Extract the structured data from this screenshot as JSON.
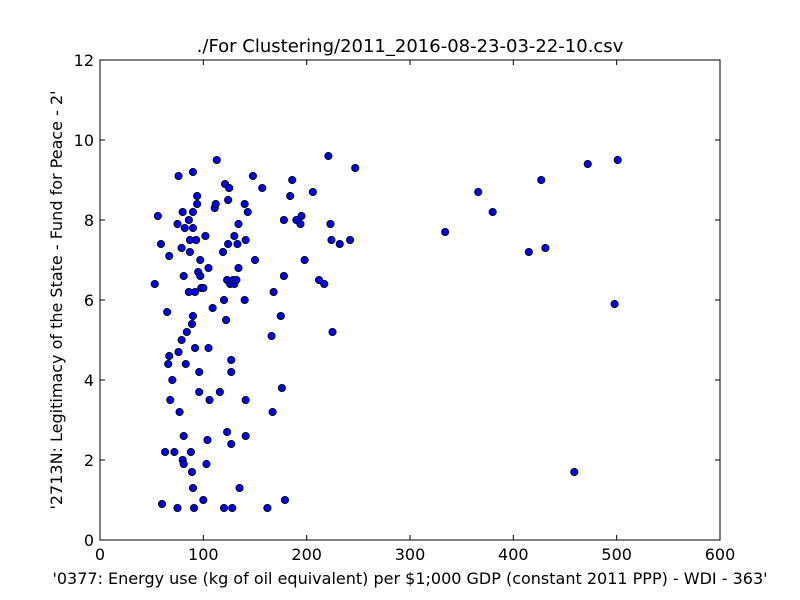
{
  "chart_data": {
    "type": "scatter",
    "title": "./For Clustering/2011_2016-08-23-03-22-10.csv",
    "xlabel": "'0377: Energy use (kg of oil equivalent) per $1;000 GDP  (constant 2011 PPP) - WDI - 363'",
    "ylabel": "'2713N: Legitimacy of the State - Fund for Peace - 2'",
    "xlim": [
      0,
      600
    ],
    "ylim": [
      0,
      12
    ],
    "xticks": [
      0,
      100,
      200,
      300,
      400,
      500,
      600
    ],
    "yticks": [
      0,
      2,
      4,
      6,
      8,
      10,
      12
    ],
    "grid": false,
    "marker_color": "#0000ff",
    "marker_edge": "#000000",
    "points": [
      [
        53,
        6.4
      ],
      [
        56,
        8.1
      ],
      [
        59,
        7.4
      ],
      [
        60,
        0.9
      ],
      [
        63,
        2.2
      ],
      [
        65,
        5.7
      ],
      [
        66,
        4.4
      ],
      [
        67,
        4.6
      ],
      [
        67,
        7.1
      ],
      [
        68,
        3.5
      ],
      [
        70,
        4.0
      ],
      [
        72,
        2.2
      ],
      [
        75,
        0.8
      ],
      [
        75,
        7.9
      ],
      [
        76,
        9.1
      ],
      [
        76,
        4.7
      ],
      [
        77,
        3.2
      ],
      [
        79,
        5.0
      ],
      [
        79,
        7.3
      ],
      [
        80,
        8.2
      ],
      [
        80,
        2.0
      ],
      [
        81,
        1.9
      ],
      [
        81,
        2.6
      ],
      [
        81,
        6.6
      ],
      [
        82,
        7.8
      ],
      [
        83,
        4.4
      ],
      [
        84,
        5.2
      ],
      [
        86,
        6.2
      ],
      [
        86,
        8.0
      ],
      [
        87,
        7.2
      ],
      [
        87,
        7.5
      ],
      [
        88,
        2.2
      ],
      [
        89,
        1.7
      ],
      [
        89,
        5.4
      ],
      [
        90,
        1.3
      ],
      [
        90,
        5.6
      ],
      [
        90,
        7.8
      ],
      [
        90,
        8.2
      ],
      [
        90,
        9.2
      ],
      [
        91,
        0.8
      ],
      [
        92,
        6.2
      ],
      [
        92,
        4.8
      ],
      [
        93,
        7.5
      ],
      [
        94,
        8.4
      ],
      [
        94,
        8.6
      ],
      [
        95,
        6.7
      ],
      [
        96,
        4.2
      ],
      [
        96,
        3.7
      ],
      [
        97,
        6.6
      ],
      [
        97,
        7.0
      ],
      [
        98,
        6.3
      ],
      [
        100,
        6.3
      ],
      [
        100,
        1.0
      ],
      [
        102,
        7.6
      ],
      [
        103,
        1.9
      ],
      [
        104,
        2.5
      ],
      [
        105,
        4.8
      ],
      [
        105,
        6.8
      ],
      [
        106,
        3.5
      ],
      [
        109,
        5.8
      ],
      [
        111,
        8.3
      ],
      [
        112,
        8.4
      ],
      [
        113,
        9.5
      ],
      [
        116,
        3.7
      ],
      [
        119,
        7.2
      ],
      [
        120,
        6.0
      ],
      [
        120,
        0.8
      ],
      [
        121,
        8.9
      ],
      [
        122,
        5.5
      ],
      [
        123,
        6.5
      ],
      [
        123,
        2.7
      ],
      [
        124,
        8.5
      ],
      [
        124,
        7.4
      ],
      [
        125,
        8.8
      ],
      [
        126,
        6.4
      ],
      [
        127,
        4.5
      ],
      [
        127,
        4.2
      ],
      [
        127,
        2.4
      ],
      [
        128,
        0.8
      ],
      [
        129,
        6.5
      ],
      [
        130,
        6.4
      ],
      [
        130,
        7.6
      ],
      [
        132,
        6.5
      ],
      [
        133,
        7.4
      ],
      [
        134,
        7.9
      ],
      [
        134,
        6.8
      ],
      [
        135,
        1.3
      ],
      [
        140,
        6.0
      ],
      [
        140,
        8.4
      ],
      [
        141,
        7.5
      ],
      [
        141,
        3.5
      ],
      [
        141,
        2.6
      ],
      [
        143,
        8.2
      ],
      [
        148,
        9.1
      ],
      [
        150,
        7.0
      ],
      [
        157,
        8.8
      ],
      [
        162,
        0.8
      ],
      [
        166,
        5.1
      ],
      [
        167,
        3.2
      ],
      [
        168,
        6.2
      ],
      [
        175,
        5.6
      ],
      [
        176,
        3.8
      ],
      [
        178,
        6.6
      ],
      [
        178,
        8.0
      ],
      [
        179,
        1.0
      ],
      [
        184,
        8.6
      ],
      [
        186,
        9.0
      ],
      [
        190,
        8.0
      ],
      [
        194,
        7.9
      ],
      [
        195,
        8.1
      ],
      [
        198,
        7.0
      ],
      [
        206,
        8.7
      ],
      [
        212,
        6.5
      ],
      [
        217,
        6.4
      ],
      [
        221,
        9.6
      ],
      [
        223,
        7.9
      ],
      [
        224,
        7.5
      ],
      [
        225,
        5.2
      ],
      [
        232,
        7.4
      ],
      [
        242,
        7.5
      ],
      [
        247,
        9.3
      ],
      [
        334,
        7.7
      ],
      [
        366,
        8.7
      ],
      [
        380,
        8.2
      ],
      [
        415,
        7.2
      ],
      [
        427,
        9.0
      ],
      [
        431,
        7.3
      ],
      [
        459,
        1.7
      ],
      [
        472,
        9.4
      ],
      [
        498,
        5.9
      ],
      [
        501,
        9.5
      ]
    ]
  }
}
